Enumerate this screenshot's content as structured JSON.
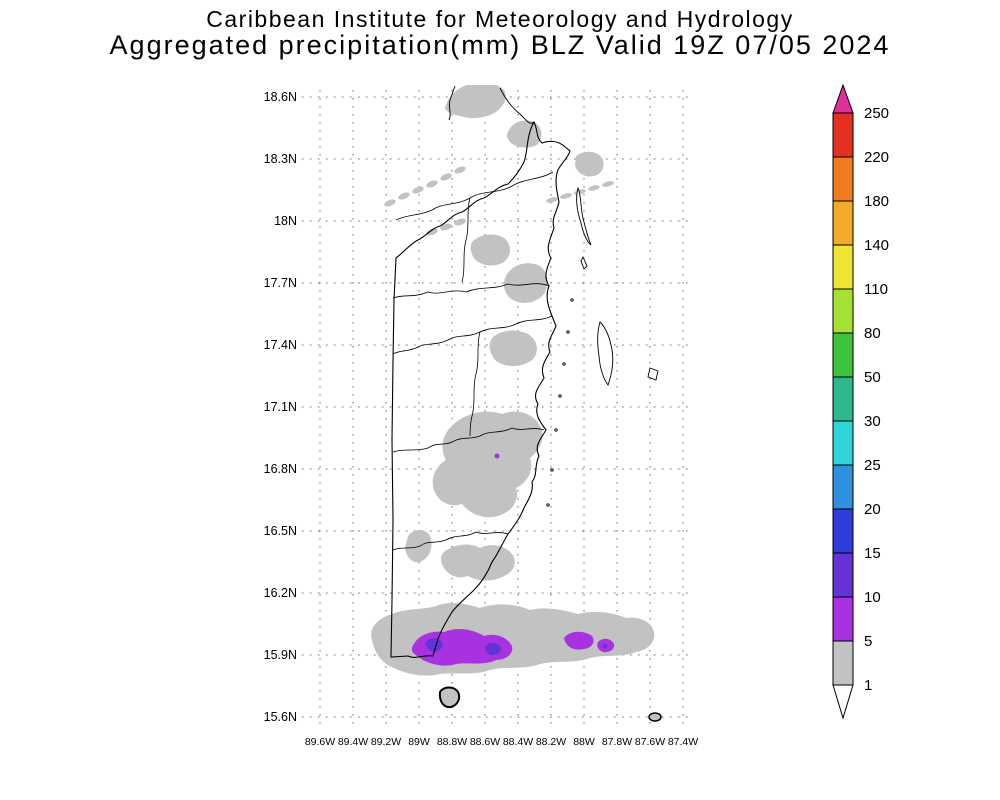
{
  "title": {
    "line1": "Caribbean Institute for Meteorology and Hydrology",
    "line2": "Aggregated precipitation(mm) BLZ Valid 19Z 07/05 2024"
  },
  "map": {
    "region": "BLZ",
    "lat_ticks": [
      "18.6N",
      "18.3N",
      "18N",
      "17.7N",
      "17.4N",
      "17.1N",
      "16.8N",
      "16.5N",
      "16.2N",
      "15.9N",
      "15.6N"
    ],
    "lon_ticks": [
      "89.6W",
      "89.4W",
      "89.2W",
      "89W",
      "88.8W",
      "88.6W",
      "88.4W",
      "88.2W",
      "88W",
      "87.8W",
      "87.6W",
      "87.4W"
    ]
  },
  "colorbar": {
    "tick_labels": [
      "250",
      "220",
      "180",
      "140",
      "110",
      "80",
      "50",
      "30",
      "25",
      "20",
      "15",
      "10",
      "5",
      "1"
    ],
    "segment_colors_top_to_bottom": [
      "#e3301f",
      "#ef7c1f",
      "#f2ab28",
      "#eee431",
      "#a5e034",
      "#3dc43d",
      "#2eb68e",
      "#30d5d5",
      "#2f90dd",
      "#2f3ddd",
      "#6333d6",
      "#a832e0",
      "#c2c2c2"
    ],
    "above_max_color": "#df2f9f",
    "below_min_color": "#ffffff"
  },
  "map_colors": {
    "light_precip_gray": "#c2c2c2",
    "precip_5_10_purple": "#a832e0",
    "precip_10_15_violet": "#6333d6"
  }
}
